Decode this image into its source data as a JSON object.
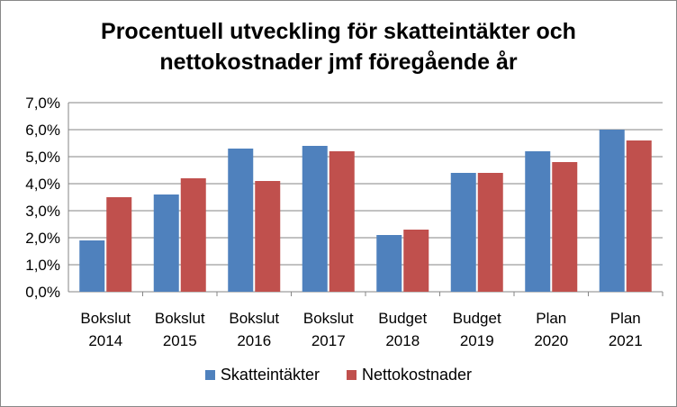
{
  "chart_data": {
    "type": "bar",
    "title_line1": "Procentuell utveckling för skatteintäkter och",
    "title_line2": "nettokostnader jmf föregående år",
    "categories": [
      [
        "Bokslut",
        "2014"
      ],
      [
        "Bokslut",
        "2015"
      ],
      [
        "Bokslut",
        "2016"
      ],
      [
        "Bokslut",
        "2017"
      ],
      [
        "Budget",
        "2018"
      ],
      [
        "Budget",
        "2019"
      ],
      [
        "Plan",
        "2020"
      ],
      [
        "Plan",
        "2021"
      ]
    ],
    "series": [
      {
        "name": "Skatteintäkter",
        "color": "#4F81BD",
        "values": [
          1.9,
          3.6,
          5.3,
          5.4,
          2.1,
          4.4,
          5.2,
          6.0
        ]
      },
      {
        "name": "Nettokostnader",
        "color": "#C0504D",
        "values": [
          3.5,
          4.2,
          4.1,
          5.2,
          2.3,
          4.4,
          4.8,
          5.6
        ]
      }
    ],
    "y_ticks": [
      "0,0%",
      "1,0%",
      "2,0%",
      "3,0%",
      "4,0%",
      "5,0%",
      "6,0%",
      "7,0%"
    ],
    "ylim": [
      0,
      7
    ],
    "grid": true,
    "legend_position": "bottom"
  }
}
